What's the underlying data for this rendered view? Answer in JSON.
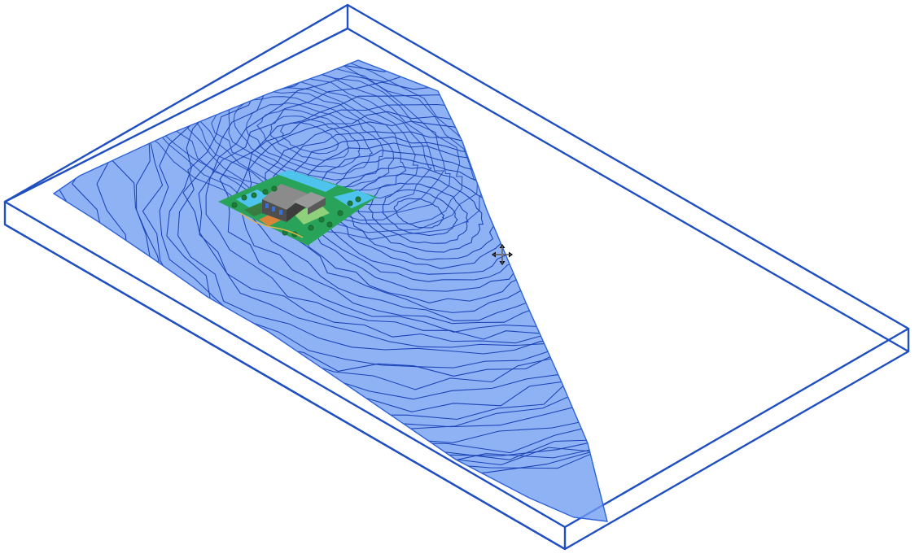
{
  "view": {
    "type": "3d-viewport",
    "background_color": "#ffffff"
  },
  "colors": {
    "box_outline": "#1f4fc0",
    "surface_fill": "#6f9cf2",
    "surface_edge": "#2f63d6",
    "contour_line": "#1a43b5",
    "site_grass": "#2aa35a",
    "site_water": "#4ec3ee",
    "building": "#6b6b6b"
  },
  "icons": {
    "cursor": "move-cursor-icon"
  }
}
